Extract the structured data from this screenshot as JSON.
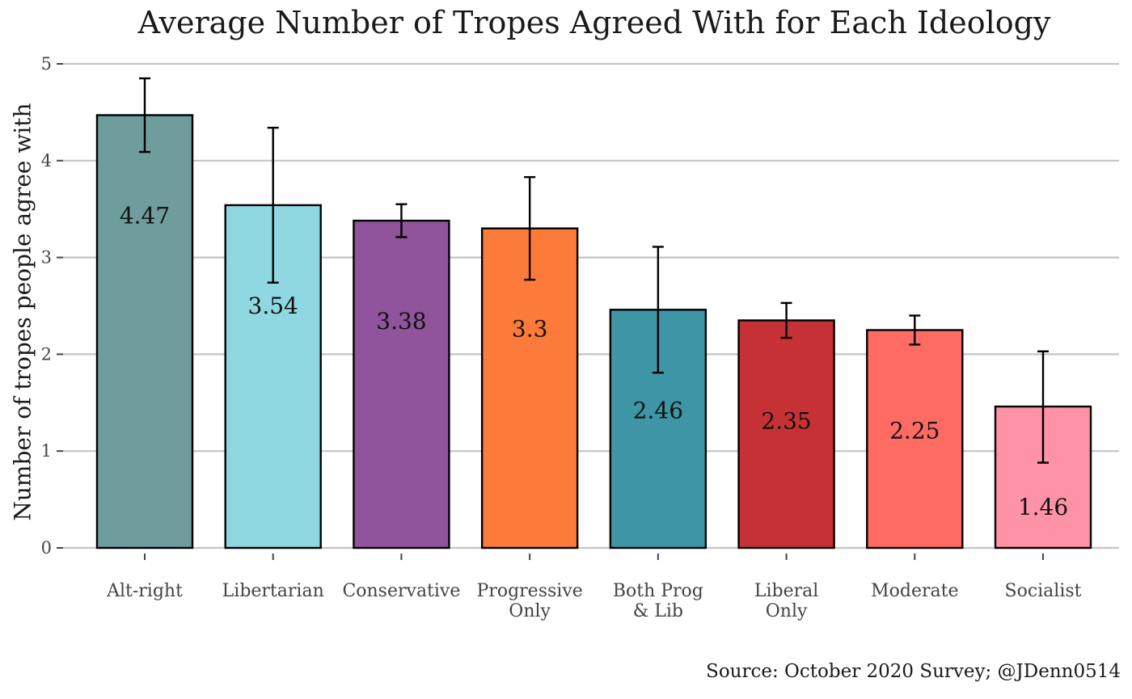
{
  "chart_data": {
    "type": "bar",
    "title": "Average Number of Tropes Agreed With for Each Ideology",
    "xlabel": "",
    "ylabel": "Number of tropes people agree with",
    "ylim": [
      0,
      5
    ],
    "yticks": [
      0,
      1,
      2,
      3,
      4,
      5
    ],
    "grid": true,
    "categories": [
      [
        "Alt-right"
      ],
      [
        "Libertarian"
      ],
      [
        "Conservative"
      ],
      [
        "Progressive",
        "Only"
      ],
      [
        "Both Prog",
        "& Lib"
      ],
      [
        "Liberal",
        "Only"
      ],
      [
        "Moderate"
      ],
      [
        "Socialist"
      ]
    ],
    "values": [
      4.47,
      3.54,
      3.38,
      3.3,
      2.46,
      2.35,
      2.25,
      1.46
    ],
    "labels": [
      "4.47",
      "3.54",
      "3.38",
      "3.3",
      "2.46",
      "2.35",
      "2.25",
      "1.46"
    ],
    "error_low": [
      4.09,
      2.74,
      3.21,
      2.77,
      1.81,
      2.17,
      2.1,
      0.88
    ],
    "error_high": [
      4.85,
      4.34,
      3.55,
      3.83,
      3.11,
      2.53,
      2.4,
      2.03
    ],
    "colors": [
      "#6f9c9d",
      "#8fd8e1",
      "#8f549b",
      "#fc7a3a",
      "#3e95a6",
      "#c63136",
      "#fe6b63",
      "#fe92a6"
    ],
    "source": "Source: October 2020 Survey; @JDenn0514"
  }
}
